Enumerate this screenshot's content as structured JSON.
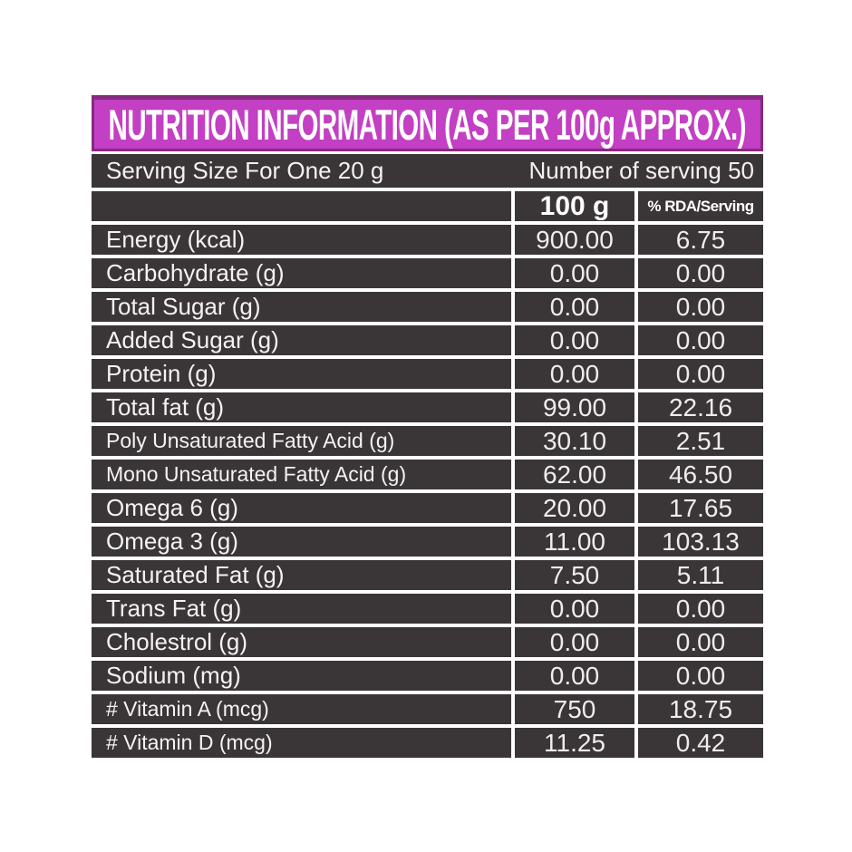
{
  "title": "NUTRITION INFORMATION (AS PER 100g APPROX.)",
  "serving": {
    "size_label": "Serving Size For One 20 g",
    "count_label": "Number of serving 50"
  },
  "columns": {
    "amount": "100 g",
    "rda": "% RDA/Serving"
  },
  "rows": [
    {
      "label": "Energy (kcal)",
      "amount": "900.00",
      "rda": "6.75"
    },
    {
      "label": "Carbohydrate (g)",
      "amount": "0.00",
      "rda": "0.00"
    },
    {
      "label": "Total Sugar (g)",
      "amount": "0.00",
      "rda": "0.00"
    },
    {
      "label": "Added Sugar (g)",
      "amount": "0.00",
      "rda": "0.00"
    },
    {
      "label": "Protein (g)",
      "amount": "0.00",
      "rda": "0.00"
    },
    {
      "label": "Total fat (g)",
      "amount": "99.00",
      "rda": "22.16"
    },
    {
      "label": "Poly Unsaturated Fatty Acid (g)",
      "amount": "30.10",
      "rda": "2.51"
    },
    {
      "label": "Mono Unsaturated Fatty Acid (g)",
      "amount": "62.00",
      "rda": "46.50"
    },
    {
      "label": "Omega 6 (g)",
      "amount": "20.00",
      "rda": "17.65"
    },
    {
      "label": "Omega 3 (g)",
      "amount": "11.00",
      "rda": "103.13"
    },
    {
      "label": "Saturated Fat (g)",
      "amount": "7.50",
      "rda": "5.11"
    },
    {
      "label": "Trans Fat (g)",
      "amount": "0.00",
      "rda": "0.00"
    },
    {
      "label": "Cholestrol (g)",
      "amount": "0.00",
      "rda": "0.00"
    },
    {
      "label": "Sodium (mg)",
      "amount": "0.00",
      "rda": "0.00"
    },
    {
      "label": "# Vitamin A (mcg)",
      "amount": "750",
      "rda": "18.75"
    },
    {
      "label": "# Vitamin D (mcg)",
      "amount": "11.25",
      "rda": "0.42"
    }
  ],
  "colors": {
    "header_bg": "#c33fc3",
    "header_border": "#862a80",
    "table_bg": "#3a3536",
    "text_light": "#f5f2f2",
    "page_bg": "#ffffff"
  }
}
